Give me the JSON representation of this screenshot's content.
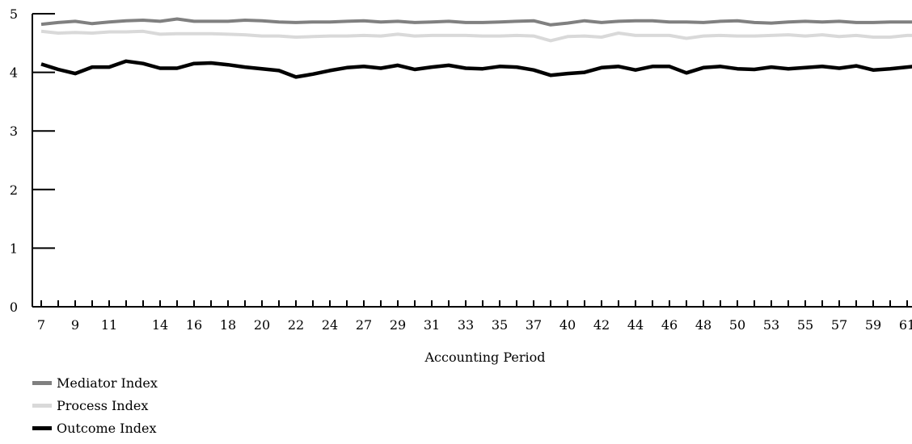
{
  "chart_data": {
    "type": "line",
    "xlabel": "Accounting Period",
    "ylabel": "",
    "ylim": [
      0,
      5
    ],
    "yticks": [
      0,
      1,
      2,
      3,
      4,
      5
    ],
    "x": [
      "7",
      "8",
      "9",
      "10",
      "11",
      "12",
      "13",
      "14",
      "15",
      "16",
      "17",
      "18",
      "19",
      "20",
      "21",
      "22",
      "23",
      "24",
      "25",
      "27",
      "28",
      "29",
      "30",
      "31",
      "32",
      "33",
      "34",
      "35",
      "36",
      "37",
      "38",
      "40",
      "41",
      "42",
      "43",
      "44",
      "45",
      "46",
      "47",
      "48",
      "49",
      "50",
      "52",
      "53",
      "54",
      "55",
      "56",
      "57",
      "58",
      "59",
      "60",
      "61",
      "62"
    ],
    "xtick_labels": [
      "7",
      "9",
      "11",
      "14",
      "16",
      "18",
      "20",
      "22",
      "24",
      "27",
      "29",
      "31",
      "33",
      "35",
      "37",
      "40",
      "42",
      "44",
      "46",
      "48",
      "50",
      "53",
      "55",
      "57",
      "59",
      "61"
    ],
    "series": [
      {
        "name": "Mediator Index",
        "color": "#808080",
        "values": [
          4.82,
          4.85,
          4.87,
          4.83,
          4.86,
          4.88,
          4.89,
          4.87,
          4.91,
          4.87,
          4.87,
          4.87,
          4.89,
          4.88,
          4.86,
          4.85,
          4.86,
          4.86,
          4.87,
          4.88,
          4.86,
          4.87,
          4.85,
          4.86,
          4.87,
          4.85,
          4.85,
          4.86,
          4.87,
          4.88,
          4.81,
          4.84,
          4.88,
          4.85,
          4.87,
          4.88,
          4.88,
          4.86,
          4.86,
          4.85,
          4.87,
          4.88,
          4.85,
          4.84,
          4.86,
          4.87,
          4.86,
          4.87,
          4.85,
          4.85,
          4.86,
          4.86,
          4.86
        ]
      },
      {
        "name": "Process Index",
        "color": "#d9d9d9",
        "values": [
          4.7,
          4.67,
          4.68,
          4.67,
          4.69,
          4.69,
          4.7,
          4.65,
          4.66,
          4.66,
          4.66,
          4.65,
          4.64,
          4.62,
          4.62,
          4.6,
          4.61,
          4.62,
          4.62,
          4.63,
          4.62,
          4.65,
          4.62,
          4.63,
          4.63,
          4.63,
          4.62,
          4.62,
          4.63,
          4.62,
          4.54,
          4.61,
          4.62,
          4.6,
          4.67,
          4.63,
          4.63,
          4.63,
          4.58,
          4.62,
          4.63,
          4.62,
          4.62,
          4.63,
          4.64,
          4.62,
          4.64,
          4.61,
          4.63,
          4.6,
          4.6,
          4.63,
          4.63
        ]
      },
      {
        "name": "Outcome Index",
        "color": "#000000",
        "values": [
          4.14,
          4.05,
          3.98,
          4.09,
          4.09,
          4.19,
          4.15,
          4.07,
          4.07,
          4.15,
          4.16,
          4.13,
          4.09,
          4.06,
          4.03,
          3.92,
          3.97,
          4.03,
          4.08,
          4.1,
          4.07,
          4.12,
          4.05,
          4.09,
          4.12,
          4.07,
          4.06,
          4.1,
          4.09,
          4.04,
          3.95,
          3.98,
          4.0,
          4.08,
          4.1,
          4.04,
          4.1,
          4.1,
          3.99,
          4.08,
          4.1,
          4.06,
          4.05,
          4.09,
          4.06,
          4.08,
          4.1,
          4.07,
          4.11,
          4.04,
          4.06,
          4.09,
          4.12
        ]
      }
    ],
    "legend_position": "bottom-left",
    "grid": false
  }
}
